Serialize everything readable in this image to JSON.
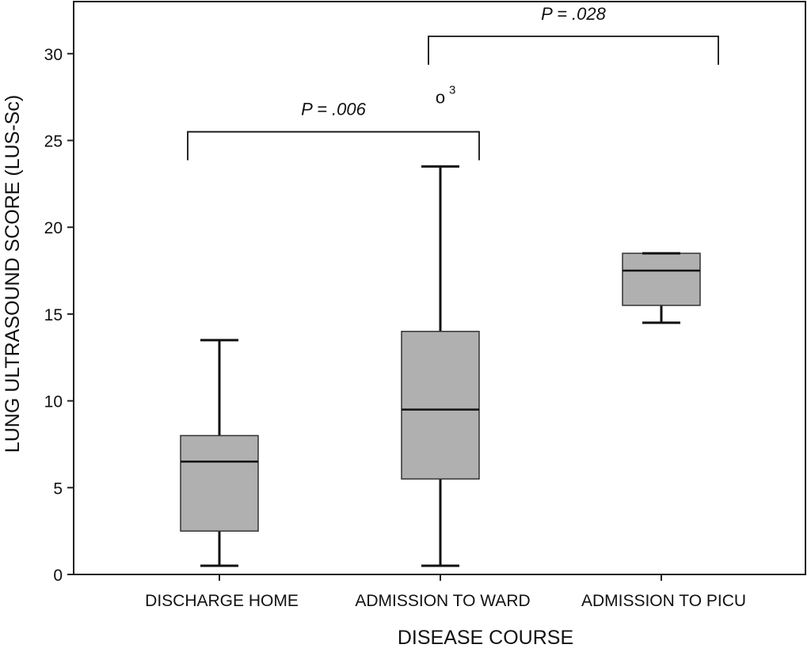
{
  "chart_data": {
    "type": "box",
    "title": "",
    "xlabel": "DISEASE COURSE",
    "ylabel": "LUNG ULTRASOUND SCORE (LUS-Sc)",
    "ylim": [
      0,
      33
    ],
    "yticks": [
      0,
      5,
      10,
      15,
      20,
      25,
      30
    ],
    "grid": false,
    "categories": [
      "DISCHARGE HOME",
      "ADMISSION TO WARD",
      "ADMISSION TO PICU"
    ],
    "boxes": [
      {
        "category": "DISCHARGE HOME",
        "whisker_low": 0.5,
        "q1": 2.5,
        "median": 6.5,
        "q3": 8.0,
        "whisker_high": 13.5
      },
      {
        "category": "ADMISSION TO WARD",
        "whisker_low": 0.5,
        "q1": 5.5,
        "median": 9.5,
        "q3": 14.0,
        "whisker_high": 23.5
      },
      {
        "category": "ADMISSION TO PICU",
        "whisker_low": 14.5,
        "q1": 15.5,
        "median": 17.5,
        "q3": 18.5,
        "whisker_high": 18.5
      }
    ],
    "outliers": [
      {
        "category": "ADMISSION TO WARD",
        "value": 27.5,
        "marker": "o",
        "label": "3"
      }
    ],
    "comparisons": [
      {
        "from": "DISCHARGE HOME",
        "to": "ADMISSION TO WARD",
        "label": "P = .006",
        "bracket_y": 25.5
      },
      {
        "from": "ADMISSION TO WARD",
        "to": "ADMISSION TO PICU",
        "label": "P = .028",
        "bracket_y": 31.0
      }
    ],
    "colors": {
      "box_fill": "#b0b0b0",
      "box_stroke": "#333333",
      "line": "#111111"
    }
  }
}
